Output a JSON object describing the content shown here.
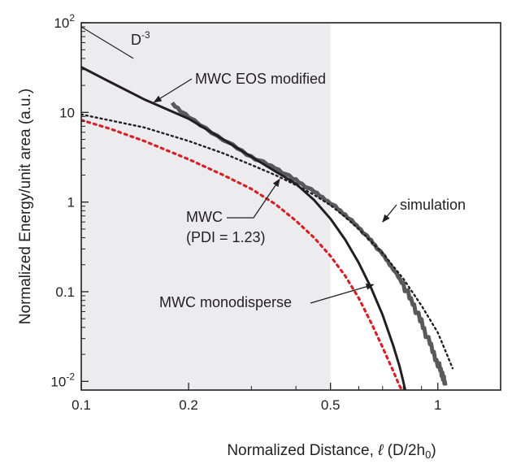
{
  "chart_data": {
    "type": "line",
    "xscale": "log",
    "yscale": "log",
    "xlim": [
      0.1,
      1.5
    ],
    "ylim": [
      0.008,
      100
    ],
    "shaded_region": {
      "x": [
        0.1,
        0.5
      ],
      "color": "#ececee"
    },
    "xlabel": "Normalized Distance,",
    "xlabel_ell": "ℓ",
    "xlabel_units": "(D/2h",
    "xlabel_sub": "0",
    "xlabel_close": ")",
    "ylabel": "Normalized Energy/unit area (a.u.)",
    "x_ticks": [
      {
        "value": 0.1,
        "label": "0.1"
      },
      {
        "value": 0.2,
        "label": "0.2"
      },
      {
        "value": 0.5,
        "label": "0.5"
      },
      {
        "value": 1,
        "label": "1"
      }
    ],
    "y_ticks": [
      {
        "value": 0.01,
        "base": "10",
        "exp": "-2"
      },
      {
        "value": 0.1,
        "label": "0.1"
      },
      {
        "value": 1,
        "label": "1"
      },
      {
        "value": 10,
        "label": "10"
      },
      {
        "value": 100,
        "base": "10",
        "exp": "2"
      }
    ],
    "series": [
      {
        "key": "simulation",
        "color": "#58595b",
        "style": "thick-noisy",
        "x": [
          0.18,
          0.2,
          0.25,
          0.3,
          0.35,
          0.4,
          0.45,
          0.5,
          0.55,
          0.6,
          0.65,
          0.7,
          0.75,
          0.8,
          0.85,
          0.9,
          0.95,
          1.0,
          1.03,
          1.05
        ],
        "y": [
          12.5,
          8.8,
          5.0,
          3.2,
          2.4,
          1.75,
          1.3,
          0.98,
          0.72,
          0.52,
          0.37,
          0.26,
          0.18,
          0.12,
          0.075,
          0.045,
          0.026,
          0.016,
          0.012,
          0.009
        ]
      },
      {
        "key": "mwc_eos_modified",
        "color": "#231f20",
        "style": "solid",
        "x": [
          0.1,
          0.12,
          0.15,
          0.2,
          0.25,
          0.3,
          0.35,
          0.4,
          0.45,
          0.5,
          0.55,
          0.6,
          0.65,
          0.7,
          0.75,
          0.78,
          0.8,
          0.81
        ],
        "y": [
          32,
          22,
          14,
          8.5,
          5.0,
          3.2,
          2.2,
          1.6,
          1.05,
          0.65,
          0.38,
          0.21,
          0.11,
          0.055,
          0.025,
          0.015,
          0.01,
          0.008
        ]
      },
      {
        "key": "mwc_pdi",
        "color": "#231f20",
        "style": "dotted",
        "x": [
          0.1,
          0.15,
          0.2,
          0.25,
          0.3,
          0.35,
          0.4,
          0.45,
          0.5,
          0.55,
          0.6,
          0.7,
          0.8,
          0.9,
          1.0,
          1.05,
          1.1
        ],
        "y": [
          9.5,
          6.8,
          4.8,
          3.5,
          2.6,
          2.0,
          1.55,
          1.2,
          0.92,
          0.68,
          0.5,
          0.27,
          0.14,
          0.07,
          0.035,
          0.022,
          0.014
        ]
      },
      {
        "key": "mwc_monodisperse",
        "color": "#d2232a",
        "style": "dotted",
        "x": [
          0.1,
          0.12,
          0.15,
          0.2,
          0.25,
          0.3,
          0.35,
          0.4,
          0.45,
          0.5,
          0.55,
          0.6,
          0.65,
          0.7,
          0.75,
          0.78,
          0.8
        ],
        "y": [
          8.2,
          6.6,
          4.8,
          3.0,
          2.0,
          1.4,
          0.95,
          0.62,
          0.4,
          0.25,
          0.15,
          0.085,
          0.045,
          0.024,
          0.013,
          0.009,
          0.0075
        ]
      },
      {
        "key": "d3_reference",
        "color": "#231f20",
        "style": "thin",
        "x": [
          0.1,
          0.14
        ],
        "y": [
          90,
          40
        ]
      }
    ],
    "annotations": [
      {
        "key": "d3",
        "base": "D",
        "exp": "-3"
      },
      {
        "key": "eos",
        "text": "MWC EOS modified",
        "arrow_to": [
          0.16,
          13
        ]
      },
      {
        "key": "sim",
        "text": "simulation",
        "arrow_to": [
          0.7,
          0.6
        ]
      },
      {
        "key": "pdi",
        "lines": [
          "MWC",
          "(PDI = 1.23)"
        ],
        "arrow_to": [
          0.36,
          1.8
        ]
      },
      {
        "key": "mono",
        "text": "MWC monodisperse",
        "arrow_to": [
          0.66,
          0.12
        ]
      }
    ]
  }
}
